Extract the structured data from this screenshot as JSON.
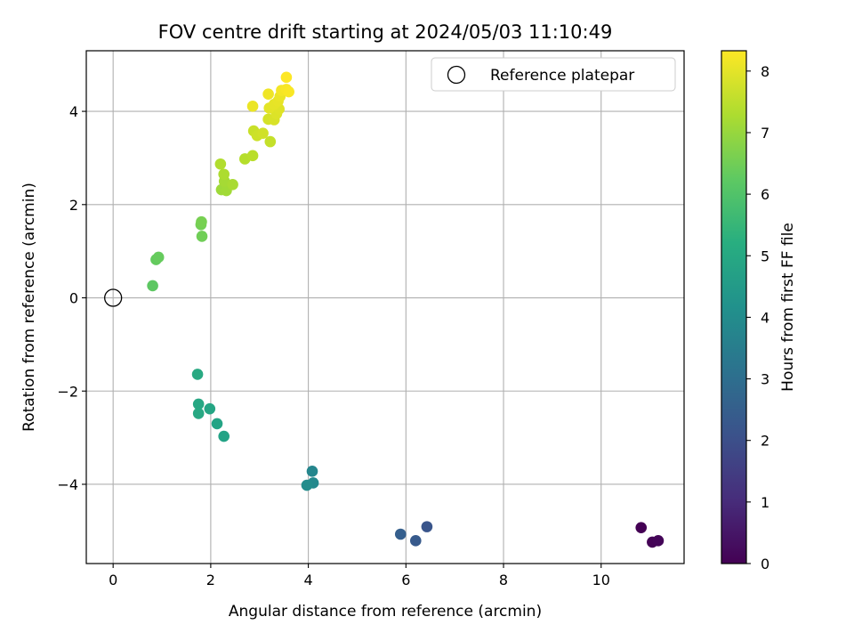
{
  "chart_data": {
    "type": "scatter",
    "title": "FOV centre drift starting at 2024/05/03 11:10:49",
    "xlabel": "Angular distance from reference (arcmin)",
    "ylabel": "Rotation from reference (arcmin)",
    "xlim": [
      -0.55,
      11.7
    ],
    "ylim": [
      -5.7,
      5.3
    ],
    "xticks": [
      0,
      2,
      4,
      6,
      8,
      10
    ],
    "yticks": [
      -4,
      -2,
      0,
      2,
      4
    ],
    "xtick_labels": [
      "0",
      "2",
      "4",
      "6",
      "8",
      "10"
    ],
    "ytick_labels": [
      "−4",
      "−2",
      "0",
      "2",
      "4"
    ],
    "grid": true,
    "legend": {
      "label": "Reference platepar",
      "placement": "top-right"
    },
    "reference_point": {
      "x": 0,
      "y": 0
    },
    "colorbar": {
      "label": "Hours from first FF file",
      "colormap": "viridis",
      "range": [
        0,
        8.33
      ],
      "ticks": [
        0,
        1,
        2,
        3,
        4,
        5,
        6,
        7,
        8
      ],
      "tick_labels": [
        "0",
        "1",
        "2",
        "3",
        "4",
        "5",
        "6",
        "7",
        "8"
      ]
    },
    "points": [
      {
        "x": 10.82,
        "y": -4.93,
        "h": 0.0
      },
      {
        "x": 11.05,
        "y": -5.24,
        "h": 0.05
      },
      {
        "x": 11.17,
        "y": -5.21,
        "h": 0.1
      },
      {
        "x": 6.43,
        "y": -4.91,
        "h": 2.2
      },
      {
        "x": 6.2,
        "y": -5.21,
        "h": 2.35
      },
      {
        "x": 5.89,
        "y": -5.07,
        "h": 2.5
      },
      {
        "x": 4.08,
        "y": -3.72,
        "h": 3.85
      },
      {
        "x": 4.1,
        "y": -3.97,
        "h": 3.95
      },
      {
        "x": 3.97,
        "y": -4.02,
        "h": 4.05
      },
      {
        "x": 2.27,
        "y": -2.97,
        "h": 4.8
      },
      {
        "x": 2.13,
        "y": -2.7,
        "h": 4.85
      },
      {
        "x": 1.98,
        "y": -2.38,
        "h": 4.9
      },
      {
        "x": 1.75,
        "y": -2.28,
        "h": 4.95
      },
      {
        "x": 1.75,
        "y": -2.48,
        "h": 5.0
      },
      {
        "x": 1.73,
        "y": -1.64,
        "h": 5.05
      },
      {
        "x": 0.81,
        "y": 0.26,
        "h": 6.2
      },
      {
        "x": 0.88,
        "y": 0.82,
        "h": 6.3
      },
      {
        "x": 0.93,
        "y": 0.87,
        "h": 6.35
      },
      {
        "x": 1.82,
        "y": 1.32,
        "h": 6.5
      },
      {
        "x": 1.8,
        "y": 1.57,
        "h": 6.55
      },
      {
        "x": 1.81,
        "y": 1.63,
        "h": 6.6
      },
      {
        "x": 2.22,
        "y": 2.32,
        "h": 7.1
      },
      {
        "x": 2.32,
        "y": 2.3,
        "h": 7.15
      },
      {
        "x": 2.28,
        "y": 2.5,
        "h": 7.2
      },
      {
        "x": 2.45,
        "y": 2.43,
        "h": 7.25
      },
      {
        "x": 2.27,
        "y": 2.65,
        "h": 7.3
      },
      {
        "x": 2.2,
        "y": 2.87,
        "h": 7.35
      },
      {
        "x": 2.7,
        "y": 2.98,
        "h": 7.4
      },
      {
        "x": 2.86,
        "y": 3.05,
        "h": 7.45
      },
      {
        "x": 3.22,
        "y": 3.35,
        "h": 7.6
      },
      {
        "x": 2.88,
        "y": 3.58,
        "h": 7.65
      },
      {
        "x": 2.95,
        "y": 3.48,
        "h": 7.7
      },
      {
        "x": 3.07,
        "y": 3.53,
        "h": 7.75
      },
      {
        "x": 3.18,
        "y": 3.83,
        "h": 7.8
      },
      {
        "x": 3.3,
        "y": 3.82,
        "h": 7.85
      },
      {
        "x": 3.35,
        "y": 3.95,
        "h": 7.9
      },
      {
        "x": 3.4,
        "y": 4.05,
        "h": 7.95
      },
      {
        "x": 3.2,
        "y": 4.07,
        "h": 8.0
      },
      {
        "x": 3.3,
        "y": 4.15,
        "h": 8.02
      },
      {
        "x": 3.38,
        "y": 4.22,
        "h": 8.05
      },
      {
        "x": 3.42,
        "y": 4.32,
        "h": 8.08
      },
      {
        "x": 2.86,
        "y": 4.11,
        "h": 8.1
      },
      {
        "x": 3.18,
        "y": 4.37,
        "h": 8.15
      },
      {
        "x": 3.45,
        "y": 4.45,
        "h": 8.2
      },
      {
        "x": 3.55,
        "y": 4.47,
        "h": 8.25
      },
      {
        "x": 3.6,
        "y": 4.42,
        "h": 8.28
      },
      {
        "x": 3.55,
        "y": 4.73,
        "h": 8.33
      }
    ]
  }
}
